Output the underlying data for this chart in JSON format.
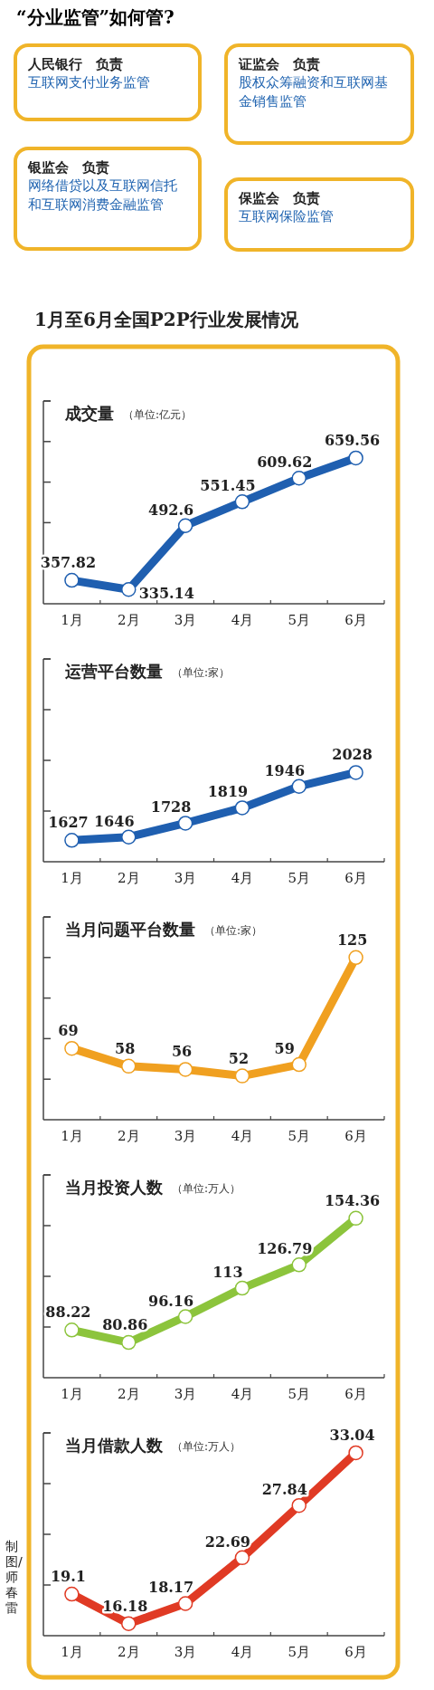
{
  "chart_data": [
    {
      "type": "other",
      "title": "“分业监管”如何管?",
      "annotations": [
        "人民银行　负责",
        "互联网支付业务监管",
        "证监会　负责",
        "股权众筹融资和互联网基金销售监管",
        "银监会　负责",
        "网络借贷以及互联网信托和互联网消费金融监管",
        "保监会　负责",
        "互联网保险监管"
      ]
    },
    {
      "type": "line",
      "title": "1月至6月全国P2P行业发展情况",
      "subtitle": "成交量",
      "ylabel": "（单位:亿元）",
      "categories": [
        "1月",
        "2月",
        "3月",
        "4月",
        "5月",
        "6月"
      ],
      "series": [
        {
          "color": "#1f5fb0",
          "values": [
            357.82,
            335.14,
            492.6,
            551.45,
            609.62,
            659.56
          ]
        }
      ],
      "ylim": [
        300,
        800
      ],
      "yticks": [
        {
          "value": 400,
          "label": null
        },
        {
          "value": 500,
          "label": null
        },
        {
          "value": 600,
          "label": null
        },
        {
          "value": 700,
          "label": null
        },
        {
          "value": 800,
          "label": null
        }
      ],
      "data_labels": true,
      "marker": "circle",
      "tick_labels": "x"
    },
    {
      "type": "line",
      "title": "运营平台数量",
      "ylabel": "（单位:家）",
      "categories": [
        "1月",
        "2月",
        "3月",
        "4月",
        "5月",
        "6月"
      ],
      "series": [
        {
          "color": "#1f5fb0",
          "values": [
            1627,
            1646,
            1728,
            1819,
            1946,
            2028
          ]
        }
      ],
      "ylim": [
        1500,
        2700
      ],
      "yticks": [
        {
          "value": 1800,
          "label": null
        },
        {
          "value": 2100,
          "label": null
        },
        {
          "value": 2400,
          "label": null
        },
        {
          "value": 2700,
          "label": null
        }
      ],
      "data_labels": true,
      "marker": "circle",
      "tick_labels": "x"
    },
    {
      "type": "line",
      "title": "当月问题平台数量",
      "ylabel": "（单位:家）",
      "categories": [
        "1月",
        "2月",
        "3月",
        "4月",
        "5月",
        "6月"
      ],
      "series": [
        {
          "color": "#f0a020",
          "values": [
            69,
            58,
            56,
            52,
            59,
            125
          ]
        }
      ],
      "ylim": [
        25,
        150
      ],
      "yticks": [
        {
          "value": 50,
          "label": null
        },
        {
          "value": 75,
          "label": null
        },
        {
          "value": 100,
          "label": null
        },
        {
          "value": 125,
          "label": null
        },
        {
          "value": 150,
          "label": null
        }
      ],
      "data_labels": true,
      "marker": "circle",
      "tick_labels": "x"
    },
    {
      "type": "line",
      "title": "当月投资人数",
      "ylabel": "（单位:万人）",
      "categories": [
        "1月",
        "2月",
        "3月",
        "4月",
        "5月",
        "6月"
      ],
      "series": [
        {
          "color": "#8cc43c",
          "values": [
            88.22,
            80.86,
            96.16,
            113,
            126.79,
            154.36
          ]
        }
      ],
      "ylim": [
        60,
        180
      ],
      "yticks": [
        {
          "value": 90,
          "label": null
        },
        {
          "value": 120,
          "label": null
        },
        {
          "value": 150,
          "label": null
        },
        {
          "value": 180,
          "label": null
        }
      ],
      "data_labels": true,
      "marker": "circle",
      "tick_labels": "x"
    },
    {
      "type": "line",
      "title": "当月借款人数",
      "ylabel": "（单位:万人）",
      "categories": [
        "1月",
        "2月",
        "3月",
        "4月",
        "5月",
        "6月"
      ],
      "series": [
        {
          "color": "#e03a24",
          "values": [
            19.1,
            16.18,
            18.17,
            22.69,
            27.84,
            33.04
          ]
        }
      ],
      "ylim": [
        15,
        35
      ],
      "yticks": [
        {
          "value": 20,
          "label": null
        },
        {
          "value": 25,
          "label": null
        },
        {
          "value": 30,
          "label": null
        },
        {
          "value": 35,
          "label": null
        }
      ],
      "data_labels": true,
      "marker": "circle",
      "tick_labels": "x",
      "annotations": [
        "制图/师春雷"
      ]
    }
  ]
}
